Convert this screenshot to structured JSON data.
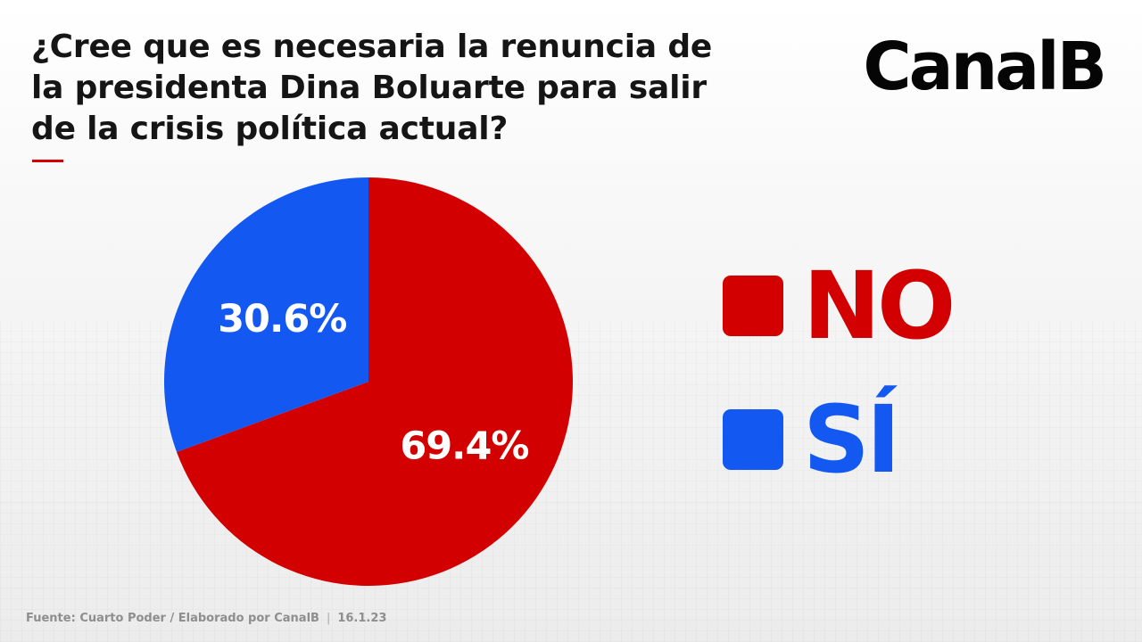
{
  "header": {
    "title": "¿Cree que es necesaria la renuncia de la presidenta Dina Boluarte para salir de la crisis política actual?",
    "brand": "CanalB"
  },
  "chart_data": {
    "type": "pie",
    "title": "¿Cree que es necesaria la renuncia de la presidenta Dina Boluarte para salir de la crisis política actual?",
    "slices": [
      {
        "label": "NO",
        "value": 69.4,
        "display": "69.4%",
        "color": "#d20000"
      },
      {
        "label": "SÍ",
        "value": 30.6,
        "display": "30.6%",
        "color": "#1458f2"
      }
    ],
    "start": "12 o'clock",
    "direction": "clockwise",
    "legend_position": "right"
  },
  "legend": {
    "items": [
      {
        "label": "NO",
        "color": "#d20000"
      },
      {
        "label": "SÍ",
        "color": "#1458f2"
      }
    ]
  },
  "footer": {
    "source": "Fuente: Cuarto Poder / Elaborado por CanalB",
    "separator": "|",
    "date": "16.1.23"
  }
}
